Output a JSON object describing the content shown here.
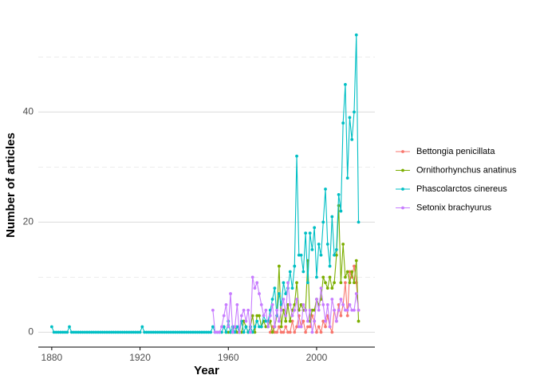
{
  "chart_data": {
    "type": "line",
    "xlabel": "Year",
    "ylabel": "Number of articles",
    "xlim": [
      1873.9,
      2026.4
    ],
    "ylim": [
      -2.7,
      56
    ],
    "xticks": [
      1880,
      1920,
      1960,
      2000
    ],
    "yticks": [
      0,
      20,
      40
    ],
    "y_minor_ticks": [
      10,
      30,
      50
    ],
    "grid": true,
    "series": [
      {
        "name": "Bettongia penicillata",
        "color": "#F8766D",
        "x": [
          1979,
          1980,
          1981,
          1982,
          1983,
          1984,
          1985,
          1986,
          1987,
          1988,
          1989,
          1990,
          1991,
          1992,
          1993,
          1994,
          1995,
          1996,
          1997,
          1998,
          1999,
          2000,
          2001,
          2002,
          2003,
          2004,
          2005,
          2006,
          2007,
          2008,
          2009,
          2010,
          2011,
          2012,
          2013,
          2014,
          2015,
          2016,
          2017,
          2018,
          2019
        ],
        "values": [
          0,
          1,
          0,
          0,
          1,
          0,
          0,
          1,
          0,
          0,
          2,
          0,
          1,
          3,
          1,
          2,
          0,
          1,
          1,
          3,
          2,
          0,
          1,
          0,
          2,
          1,
          3,
          1,
          0,
          4,
          2,
          5,
          3,
          5,
          9,
          3,
          11,
          10,
          12,
          9,
          4
        ]
      },
      {
        "name": "Ornithorhynchus anatinus",
        "color": "#7CAE00",
        "x": [
          1958,
          1959,
          1960,
          1961,
          1962,
          1963,
          1964,
          1965,
          1966,
          1967,
          1968,
          1969,
          1970,
          1971,
          1972,
          1973,
          1974,
          1975,
          1976,
          1977,
          1978,
          1979,
          1980,
          1981,
          1982,
          1983,
          1984,
          1985,
          1986,
          1987,
          1988,
          1989,
          1990,
          1991,
          1992,
          1993,
          1994,
          1995,
          1996,
          1997,
          1998,
          1999,
          2000,
          2001,
          2002,
          2003,
          2004,
          2005,
          2006,
          2007,
          2008,
          2009,
          2010,
          2011,
          2012,
          2013,
          2014,
          2015,
          2016,
          2017,
          2018,
          2019
        ],
        "values": [
          1,
          0,
          0,
          0,
          0,
          1,
          0,
          0,
          0,
          2,
          1,
          0,
          1,
          3,
          0,
          3,
          3,
          1,
          2,
          1,
          1,
          2,
          0,
          1,
          3,
          12,
          1,
          4,
          2,
          5,
          2,
          4,
          5,
          9,
          4,
          5,
          4,
          4,
          13,
          2,
          4,
          4,
          6,
          5,
          6,
          10,
          9,
          8,
          10,
          8,
          9,
          14,
          23,
          9,
          16,
          10,
          11,
          9,
          11,
          9,
          13,
          2
        ]
      },
      {
        "name": "Phascolarctos cinereus",
        "color": "#00BFC4",
        "x": [
          1880,
          1881,
          1882,
          1883,
          1884,
          1885,
          1886,
          1887,
          1888,
          1889,
          1890,
          1891,
          1892,
          1893,
          1894,
          1895,
          1896,
          1897,
          1898,
          1899,
          1900,
          1901,
          1902,
          1903,
          1904,
          1905,
          1906,
          1907,
          1908,
          1909,
          1910,
          1911,
          1912,
          1913,
          1914,
          1915,
          1916,
          1917,
          1918,
          1919,
          1920,
          1921,
          1922,
          1923,
          1924,
          1925,
          1926,
          1927,
          1928,
          1929,
          1930,
          1931,
          1932,
          1933,
          1934,
          1935,
          1936,
          1937,
          1938,
          1939,
          1940,
          1941,
          1942,
          1943,
          1944,
          1945,
          1946,
          1947,
          1948,
          1949,
          1950,
          1951,
          1952,
          1953,
          1954,
          1955,
          1956,
          1957,
          1958,
          1959,
          1960,
          1961,
          1962,
          1963,
          1964,
          1965,
          1966,
          1967,
          1968,
          1969,
          1970,
          1971,
          1972,
          1973,
          1974,
          1975,
          1976,
          1977,
          1978,
          1979,
          1980,
          1981,
          1982,
          1983,
          1984,
          1985,
          1986,
          1987,
          1988,
          1989,
          1990,
          1991,
          1992,
          1993,
          1994,
          1995,
          1996,
          1997,
          1998,
          1999,
          2000,
          2001,
          2002,
          2003,
          2004,
          2005,
          2006,
          2007,
          2008,
          2009,
          2010,
          2011,
          2012,
          2013,
          2014,
          2015,
          2016,
          2017,
          2018,
          2019
        ],
        "values": [
          1,
          0,
          0,
          0,
          0,
          0,
          0,
          0,
          1,
          0,
          0,
          0,
          0,
          0,
          0,
          0,
          0,
          0,
          0,
          0,
          0,
          0,
          0,
          0,
          0,
          0,
          0,
          0,
          0,
          0,
          0,
          0,
          0,
          0,
          0,
          0,
          0,
          0,
          0,
          0,
          0,
          1,
          0,
          0,
          0,
          0,
          0,
          0,
          0,
          0,
          0,
          0,
          0,
          0,
          0,
          0,
          0,
          0,
          0,
          0,
          0,
          0,
          0,
          0,
          0,
          0,
          0,
          0,
          0,
          0,
          0,
          0,
          0,
          1,
          0,
          0,
          0,
          0,
          1,
          0,
          2,
          0,
          1,
          0,
          1,
          0,
          2,
          0,
          1,
          0,
          1,
          0,
          1,
          2,
          1,
          1,
          3,
          2,
          2,
          4,
          6,
          8,
          3,
          7,
          5,
          9,
          7,
          8,
          11,
          8,
          12,
          32,
          14,
          14,
          11,
          18,
          9,
          18,
          15,
          19,
          10,
          16,
          14,
          20,
          26,
          16,
          12,
          21,
          14,
          15,
          25,
          22,
          38,
          45,
          28,
          39,
          35,
          40,
          54,
          20
        ]
      },
      {
        "name": "Setonix brachyurus",
        "color": "#C77CFF",
        "x": [
          1953,
          1954,
          1955,
          1956,
          1957,
          1958,
          1959,
          1960,
          1961,
          1962,
          1963,
          1964,
          1965,
          1966,
          1967,
          1968,
          1969,
          1970,
          1971,
          1972,
          1973,
          1974,
          1975,
          1976,
          1977,
          1978,
          1979,
          1980,
          1981,
          1982,
          1983,
          1984,
          1985,
          1986,
          1987,
          1988,
          1989,
          1990,
          1991,
          1992,
          1993,
          1994,
          1995,
          1996,
          1997,
          1998,
          1999,
          2000,
          2001,
          2002,
          2003,
          2004,
          2005,
          2006,
          2007,
          2008,
          2009,
          2010,
          2011,
          2012,
          2013,
          2014,
          2015,
          2016,
          2017,
          2018,
          2019
        ],
        "values": [
          4,
          0,
          0,
          0,
          1,
          3,
          5,
          1,
          7,
          0,
          1,
          5,
          0,
          3,
          4,
          2,
          4,
          0,
          10,
          8,
          9,
          7,
          5,
          3,
          4,
          1,
          3,
          5,
          1,
          4,
          2,
          4,
          6,
          3,
          9,
          5,
          3,
          4,
          6,
          1,
          1,
          5,
          4,
          2,
          4,
          0,
          2,
          6,
          4,
          8,
          5,
          2,
          5,
          1,
          6,
          4,
          2,
          4,
          6,
          5,
          4,
          4,
          5,
          4,
          4,
          7,
          4
        ]
      }
    ]
  }
}
